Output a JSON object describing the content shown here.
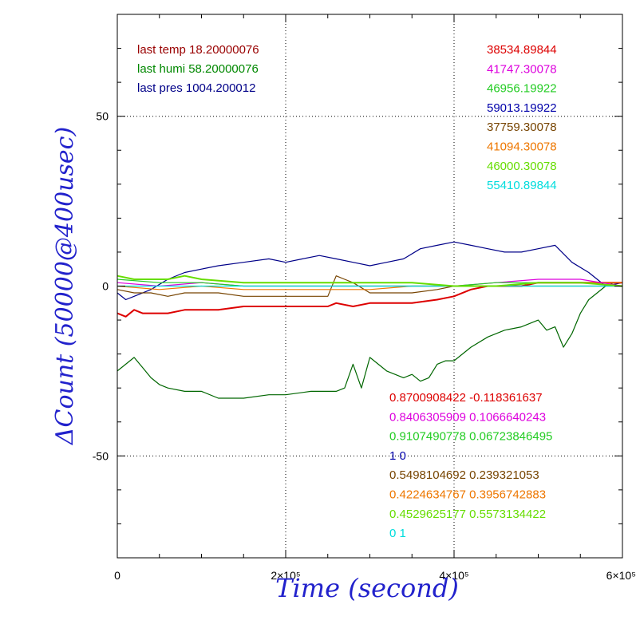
{
  "chart_data": {
    "type": "line",
    "xlabel": "Time (second)",
    "ylabel": "ΔCount (50000@400usec)",
    "xlim": [
      0,
      600000
    ],
    "ylim": [
      -80,
      80
    ],
    "x_ticks": [
      {
        "value": 0,
        "label": "0"
      },
      {
        "value": 200000,
        "label": "2×10⁵"
      },
      {
        "value": 400000,
        "label": "4×10⁵"
      },
      {
        "value": 600000,
        "label": "6×10⁵"
      }
    ],
    "y_ticks": [
      {
        "value": -50,
        "label": "-50"
      },
      {
        "value": 0,
        "label": "0"
      },
      {
        "value": 50,
        "label": "50"
      }
    ],
    "grid": true,
    "env_labels": [
      {
        "text": "last temp 18.20000076",
        "color": "#990000"
      },
      {
        "text": "last humi 58.20000076",
        "color": "#008800"
      },
      {
        "text": "last pres 1004.200012",
        "color": "#000088"
      }
    ],
    "base_labels": [
      {
        "text": "38534.89844",
        "color": "#dd0000"
      },
      {
        "text": "41747.30078",
        "color": "#dd00dd"
      },
      {
        "text": "46956.19922",
        "color": "#22cc22"
      },
      {
        "text": "59013.19922",
        "color": "#0000aa"
      },
      {
        "text": "37759.30078",
        "color": "#774400"
      },
      {
        "text": "41094.30078",
        "color": "#ee7700"
      },
      {
        "text": "46000.30078",
        "color": "#66dd00"
      },
      {
        "text": "55410.89844",
        "color": "#00dddd"
      }
    ],
    "coef_labels": [
      {
        "text": "0.8700908422 -0.118361637",
        "color": "#dd0000"
      },
      {
        "text": "0.8406305909 0.1066640243",
        "color": "#dd00dd"
      },
      {
        "text": "0.9107490778 0.06723846495",
        "color": "#22cc22"
      },
      {
        "text": "1 0",
        "color": "#0000aa"
      },
      {
        "text": "0.5498104692 0.239321053",
        "color": "#774400"
      },
      {
        "text": "0.4224634767 0.3956742883",
        "color": "#ee7700"
      },
      {
        "text": "0.4529625177 0.5573134422",
        "color": "#66dd00"
      },
      {
        "text": "0 1",
        "color": "#00dddd"
      }
    ],
    "series": [
      {
        "color": "#006600",
        "x": [
          0,
          10000,
          20000,
          30000,
          40000,
          50000,
          60000,
          80000,
          100000,
          120000,
          150000,
          180000,
          200000,
          230000,
          260000,
          270000,
          280000,
          290000,
          300000,
          320000,
          340000,
          350000,
          360000,
          370000,
          380000,
          390000,
          400000,
          420000,
          440000,
          460000,
          480000,
          500000,
          510000,
          520000,
          530000,
          540000,
          550000,
          560000,
          570000,
          580000,
          590000,
          600000
        ],
        "y": [
          -25,
          -23,
          -21,
          -24,
          -27,
          -29,
          -30,
          -31,
          -31,
          -33,
          -33,
          -32,
          -32,
          -31,
          -31,
          -30,
          -23,
          -30,
          -21,
          -25,
          -27,
          -26,
          -28,
          -27,
          -23,
          -22,
          -22,
          -18,
          -15,
          -13,
          -12,
          -10,
          -13,
          -12,
          -18,
          -14,
          -8,
          -4,
          -2,
          0,
          1,
          1
        ]
      },
      {
        "color": "#000088",
        "x": [
          0,
          10000,
          20000,
          40000,
          60000,
          80000,
          100000,
          120000,
          150000,
          180000,
          200000,
          220000,
          240000,
          260000,
          280000,
          300000,
          320000,
          340000,
          360000,
          380000,
          400000,
          420000,
          440000,
          460000,
          480000,
          500000,
          520000,
          540000,
          560000,
          570000,
          580000,
          600000
        ],
        "y": [
          -2,
          -4,
          -3,
          -1,
          2,
          4,
          5,
          6,
          7,
          8,
          7,
          8,
          9,
          8,
          7,
          6,
          7,
          8,
          11,
          12,
          13,
          12,
          11,
          10,
          10,
          11,
          12,
          7,
          4,
          2,
          0,
          1
        ]
      },
      {
        "color": "#dd0000",
        "x": [
          0,
          10000,
          20000,
          30000,
          40000,
          60000,
          80000,
          100000,
          120000,
          150000,
          200000,
          250000,
          260000,
          280000,
          300000,
          350000,
          380000,
          400000,
          420000,
          440000,
          460000,
          480000,
          500000,
          520000,
          540000,
          560000,
          580000,
          600000
        ],
        "y": [
          -8,
          -9,
          -7,
          -8,
          -8,
          -8,
          -7,
          -7,
          -7,
          -6,
          -6,
          -6,
          -5,
          -6,
          -5,
          -5,
          -4,
          -3,
          -1,
          0,
          0,
          0,
          1,
          1,
          1,
          1,
          1,
          1
        ]
      },
      {
        "color": "#774400",
        "x": [
          0,
          20000,
          40000,
          60000,
          80000,
          100000,
          120000,
          150000,
          200000,
          250000,
          260000,
          270000,
          280000,
          300000,
          350000,
          380000,
          400000,
          450000,
          500000,
          550000,
          580000,
          600000
        ],
        "y": [
          -1,
          -2,
          -2,
          -3,
          -2,
          -2,
          -2,
          -3,
          -3,
          -3,
          3,
          2,
          1,
          -2,
          -2,
          -1,
          0,
          0,
          0,
          0,
          0,
          0
        ]
      },
      {
        "color": "#ee7700",
        "x": [
          0,
          50000,
          100000,
          150000,
          200000,
          250000,
          300000,
          350000,
          400000,
          450000,
          500000,
          550000,
          600000
        ],
        "y": [
          0,
          -1,
          0,
          -1,
          -1,
          -1,
          -1,
          0,
          0,
          0,
          1,
          1,
          1
        ]
      },
      {
        "color": "#dd00dd",
        "x": [
          0,
          50000,
          100000,
          150000,
          200000,
          250000,
          300000,
          350000,
          400000,
          450000,
          500000,
          550000,
          600000
        ],
        "y": [
          1,
          0,
          1,
          0,
          0,
          0,
          0,
          0,
          0,
          1,
          2,
          2,
          0
        ]
      },
      {
        "color": "#22cc22",
        "x": [
          0,
          50000,
          100000,
          150000,
          200000,
          250000,
          300000,
          350000,
          400000,
          450000,
          500000,
          550000,
          600000
        ],
        "y": [
          2,
          1,
          1,
          0,
          0,
          0,
          0,
          0,
          0,
          1,
          1,
          1,
          0
        ]
      },
      {
        "color": "#00dddd",
        "x": [
          0,
          100000,
          200000,
          300000,
          400000,
          500000,
          600000
        ],
        "y": [
          0,
          0,
          0,
          0,
          0,
          0,
          0
        ]
      },
      {
        "color": "#66dd00",
        "x": [
          0,
          20000,
          40000,
          60000,
          80000,
          100000,
          150000,
          200000,
          250000,
          300000,
          350000,
          400000,
          450000,
          500000,
          550000,
          600000
        ],
        "y": [
          3,
          2,
          2,
          2,
          3,
          2,
          1,
          1,
          1,
          1,
          1,
          0,
          0,
          1,
          1,
          0
        ]
      }
    ]
  }
}
